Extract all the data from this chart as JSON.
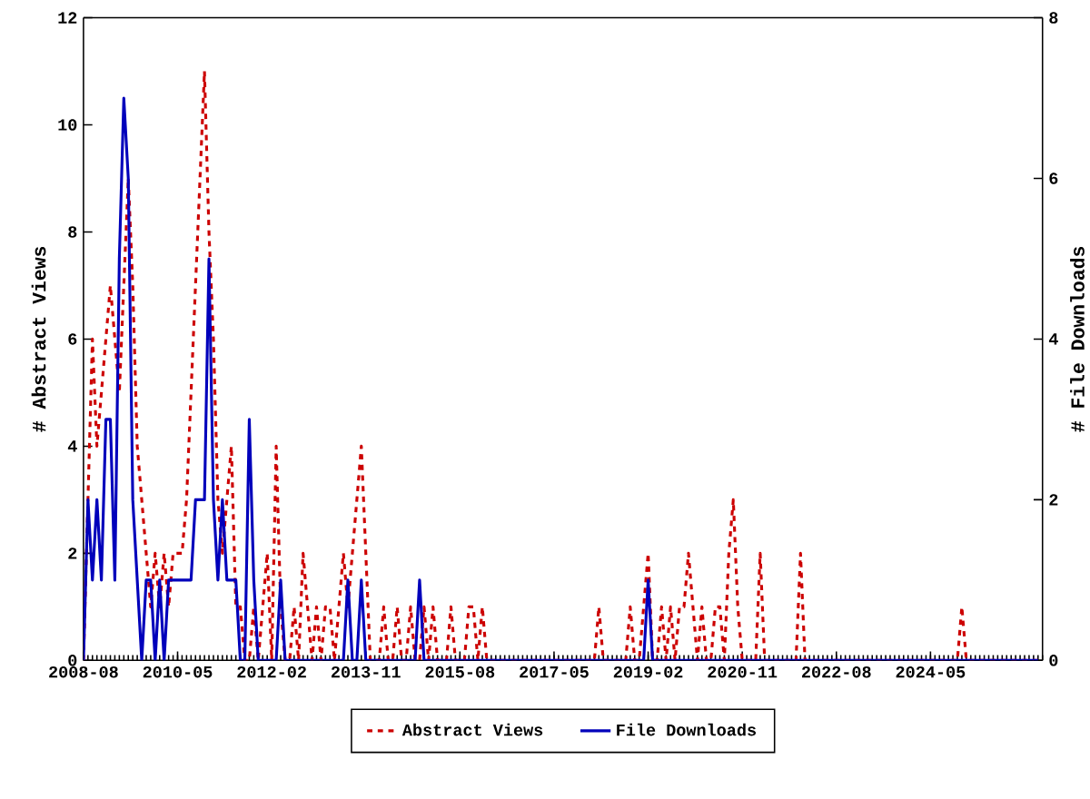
{
  "chart_data": {
    "type": "line",
    "ylabel": "# Abstract Views",
    "y2label": "# File Downloads",
    "xlim": [
      "2008-08",
      "2026-06"
    ],
    "xticks": [
      "2008-08",
      "2010-05",
      "2012-02",
      "2013-11",
      "2015-08",
      "2017-05",
      "2019-02",
      "2020-11",
      "2022-08",
      "2024-05"
    ],
    "ylim": [
      0,
      12
    ],
    "yticks": [
      0,
      2,
      4,
      6,
      8,
      10,
      12
    ],
    "y2lim": [
      0,
      8
    ],
    "y2ticks": [
      0,
      2,
      4,
      6,
      8
    ],
    "legend": "bottom",
    "grid": false,
    "marker": "none",
    "series": [
      {
        "name": "Abstract Views",
        "color": "#cc0000",
        "line_style": "dashed",
        "x": [
          "2008-08",
          "2008-09",
          "2008-10",
          "2008-11",
          "2008-12",
          "2009-01",
          "2009-02",
          "2009-03",
          "2009-04",
          "2009-05",
          "2009-06",
          "2009-07",
          "2009-08",
          "2009-09",
          "2009-10",
          "2009-11",
          "2009-12",
          "2010-01",
          "2010-02",
          "2010-03",
          "2010-04",
          "2010-05",
          "2010-06",
          "2010-07",
          "2010-08",
          "2010-09",
          "2010-10",
          "2010-11",
          "2010-12",
          "2011-01",
          "2011-02",
          "2011-03",
          "2011-04",
          "2011-05",
          "2011-06",
          "2011-07",
          "2011-08",
          "2011-09",
          "2011-10",
          "2011-11",
          "2011-12",
          "2012-01",
          "2012-02",
          "2012-03",
          "2012-04",
          "2012-05",
          "2012-06",
          "2012-07",
          "2012-08",
          "2012-09",
          "2012-10",
          "2012-11",
          "2012-12",
          "2013-01",
          "2013-02",
          "2013-03",
          "2013-04",
          "2013-05",
          "2013-06",
          "2013-07",
          "2013-08",
          "2013-09",
          "2013-10",
          "2013-11",
          "2013-12",
          "2014-02",
          "2014-03",
          "2014-04",
          "2014-05",
          "2014-06",
          "2014-07",
          "2014-08",
          "2014-09",
          "2014-10",
          "2014-11",
          "2014-12",
          "2015-01",
          "2015-02",
          "2015-03",
          "2015-05",
          "2015-06",
          "2015-07",
          "2015-09",
          "2015-10",
          "2015-11",
          "2015-12",
          "2016-01",
          "2016-02",
          "2018-02",
          "2018-03",
          "2018-04",
          "2018-09",
          "2018-10",
          "2018-11",
          "2018-12",
          "2019-01",
          "2019-02",
          "2019-03",
          "2019-04",
          "2019-05",
          "2019-06",
          "2019-07",
          "2019-08",
          "2019-09",
          "2019-10",
          "2019-11",
          "2019-12",
          "2020-01",
          "2020-02",
          "2020-03",
          "2020-04",
          "2020-05",
          "2020-06",
          "2020-07",
          "2020-08",
          "2020-09",
          "2020-10",
          "2020-11",
          "2021-02",
          "2021-03",
          "2021-04",
          "2021-11",
          "2021-12",
          "2022-01",
          "2024-11",
          "2024-12",
          "2025-01",
          "2026-05"
        ],
        "values": [
          0,
          3,
          6,
          4,
          5,
          6,
          7,
          6,
          5,
          7,
          9,
          7,
          4,
          3,
          2,
          1,
          2,
          1,
          2,
          1,
          2,
          2,
          2,
          3,
          5,
          7,
          9,
          11,
          8,
          6,
          3,
          2,
          3,
          4,
          1,
          1,
          0,
          0,
          1,
          0,
          1,
          2,
          0,
          4,
          1,
          0,
          0,
          1,
          0,
          2,
          1,
          0,
          1,
          0,
          1,
          1,
          0,
          1,
          2,
          1,
          2,
          3,
          4,
          2,
          0,
          0,
          1,
          0,
          0,
          1,
          0,
          0,
          1,
          0,
          0,
          1,
          0,
          1,
          0,
          0,
          1,
          0,
          0,
          1,
          1,
          0,
          1,
          0,
          0,
          1,
          0,
          0,
          1,
          0,
          0,
          1,
          2,
          0,
          0,
          1,
          0,
          1,
          0,
          1,
          1,
          2,
          1,
          0,
          1,
          0,
          0,
          1,
          1,
          0,
          2,
          3,
          1,
          0,
          0,
          2,
          0,
          0,
          2,
          0,
          0,
          1,
          0,
          0
        ]
      },
      {
        "name": "File Downloads",
        "color": "#0000bb",
        "line_style": "solid",
        "axis": "y2",
        "x": [
          "2008-08",
          "2008-09",
          "2008-10",
          "2008-11",
          "2008-12",
          "2009-01",
          "2009-02",
          "2009-03",
          "2009-04",
          "2009-05",
          "2009-06",
          "2009-07",
          "2009-08",
          "2009-09",
          "2009-10",
          "2009-11",
          "2009-12",
          "2010-01",
          "2010-02",
          "2010-03",
          "2010-08",
          "2010-09",
          "2010-10",
          "2010-11",
          "2010-12",
          "2011-01",
          "2011-02",
          "2011-03",
          "2011-04",
          "2011-06",
          "2011-07",
          "2011-08",
          "2011-09",
          "2011-10",
          "2011-11",
          "2012-03",
          "2012-04",
          "2012-05",
          "2013-06",
          "2013-07",
          "2013-08",
          "2013-09",
          "2013-10",
          "2013-11",
          "2014-10",
          "2014-11",
          "2014-12",
          "2019-01",
          "2019-02",
          "2019-03",
          "2026-05"
        ],
        "values": [
          0,
          2,
          1,
          2,
          1,
          3,
          3,
          1,
          5,
          7,
          6,
          2,
          1,
          0,
          1,
          1,
          0,
          1,
          0,
          1,
          1,
          2,
          2,
          2,
          5,
          2,
          1,
          2,
          1,
          1,
          0,
          0,
          3,
          1,
          0,
          0,
          1,
          0,
          0,
          1,
          0,
          0,
          1,
          0,
          0,
          1,
          0,
          0,
          1,
          0,
          0
        ]
      }
    ]
  }
}
